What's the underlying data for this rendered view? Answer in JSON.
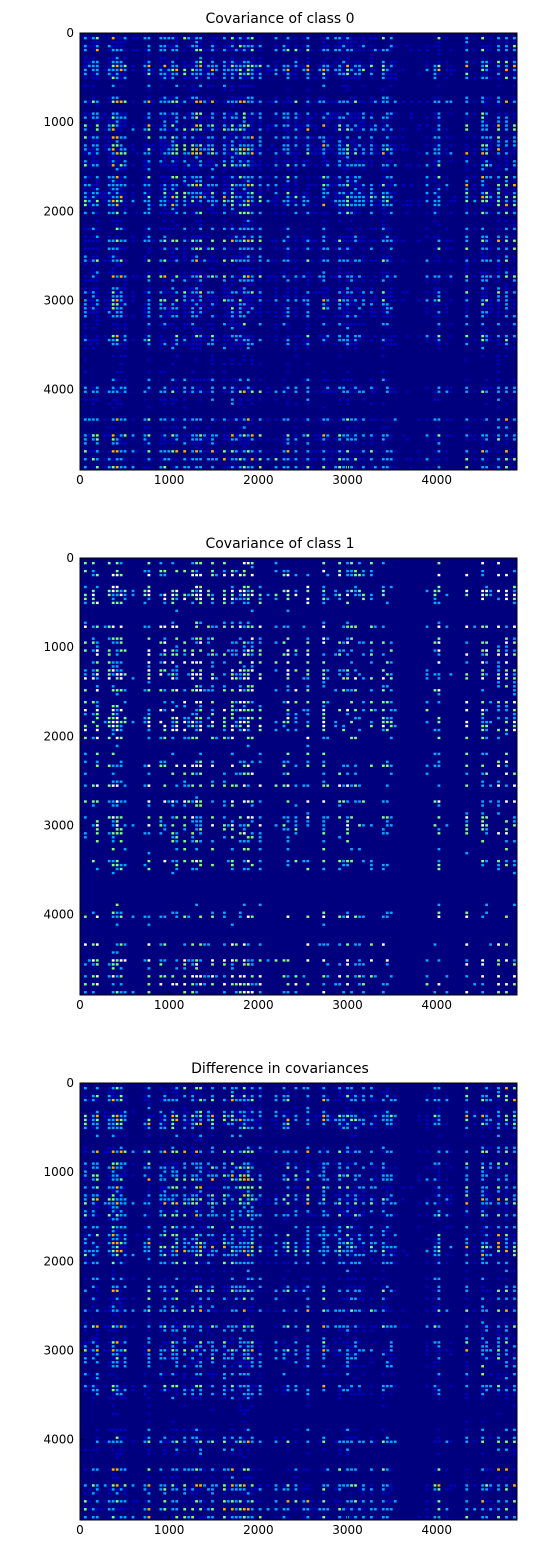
{
  "chart_data": [
    {
      "type": "heatmap",
      "title": "Covariance of class 0",
      "xlabel": "",
      "ylabel": "",
      "xlim": [
        0,
        4900
      ],
      "ylim": [
        4900,
        0
      ],
      "xticks": [
        0,
        1000,
        2000,
        3000,
        4000
      ],
      "yticks": [
        0,
        1000,
        2000,
        3000,
        4000
      ],
      "xtick_labels": [
        "0",
        "1000",
        "2000",
        "3000",
        "4000"
      ],
      "ytick_labels": [
        "0",
        "1000",
        "2000",
        "3000",
        "4000"
      ],
      "colormap": "jet",
      "intensity": 0.55,
      "grid": false
    },
    {
      "type": "heatmap",
      "title": "Covariance of class 1",
      "xlabel": "",
      "ylabel": "",
      "xlim": [
        0,
        4900
      ],
      "ylim": [
        4900,
        0
      ],
      "xticks": [
        0,
        1000,
        2000,
        3000,
        4000
      ],
      "yticks": [
        0,
        1000,
        2000,
        3000,
        4000
      ],
      "xtick_labels": [
        "0",
        "1000",
        "2000",
        "3000",
        "4000"
      ],
      "ytick_labels": [
        "0",
        "1000",
        "2000",
        "3000",
        "4000"
      ],
      "colormap": "jet",
      "intensity": 0.38,
      "grid": false
    },
    {
      "type": "heatmap",
      "title": "Difference in covariances",
      "xlabel": "",
      "ylabel": "",
      "xlim": [
        0,
        4900
      ],
      "ylim": [
        4900,
        0
      ],
      "xticks": [
        0,
        1000,
        2000,
        3000,
        4000
      ],
      "yticks": [
        0,
        1000,
        2000,
        3000,
        4000
      ],
      "xtick_labels": [
        "0",
        "1000",
        "2000",
        "3000",
        "4000"
      ],
      "ytick_labels": [
        "0",
        "1000",
        "2000",
        "3000",
        "4000"
      ],
      "colormap": "jet",
      "intensity": 0.5,
      "grid": false
    }
  ],
  "colors": {
    "background": "#00007f",
    "low": "#0000c8",
    "mid": "#00aaff",
    "high": "#7fff7f",
    "peak": "#ffb000",
    "white_gap": "#ffffff"
  }
}
